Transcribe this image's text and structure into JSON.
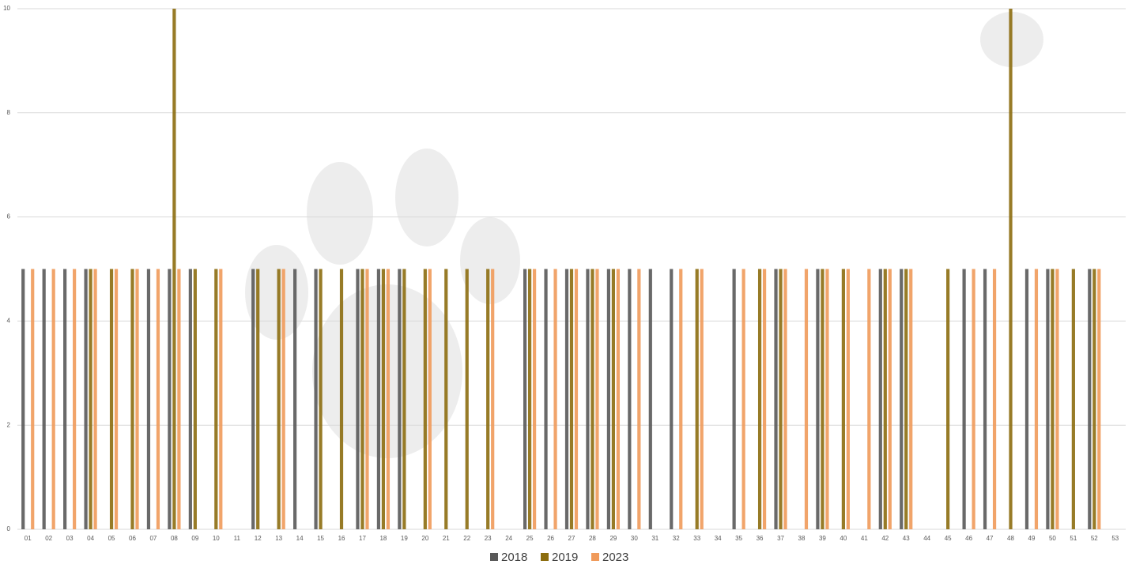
{
  "chart_data": {
    "type": "bar",
    "categories": [
      "01",
      "02",
      "03",
      "04",
      "05",
      "06",
      "07",
      "08",
      "09",
      "10",
      "11",
      "12",
      "13",
      "14",
      "15",
      "16",
      "17",
      "18",
      "19",
      "20",
      "21",
      "22",
      "23",
      "24",
      "25",
      "26",
      "27",
      "28",
      "29",
      "30",
      "31",
      "32",
      "33",
      "34",
      "35",
      "36",
      "37",
      "38",
      "39",
      "40",
      "41",
      "42",
      "43",
      "44",
      "45",
      "46",
      "47",
      "48",
      "49",
      "50",
      "51",
      "52",
      "53"
    ],
    "series": [
      {
        "name": "2018",
        "color": "#595959",
        "values": [
          5,
          5,
          5,
          5,
          0,
          0,
          5,
          5,
          5,
          0,
          0,
          5,
          0,
          5,
          5,
          0,
          5,
          5,
          5,
          0,
          0,
          0,
          0,
          0,
          5,
          5,
          5,
          5,
          5,
          5,
          5,
          5,
          0,
          0,
          5,
          0,
          5,
          0,
          5,
          0,
          0,
          5,
          5,
          0,
          0,
          5,
          5,
          0,
          5,
          5,
          0,
          5,
          0
        ]
      },
      {
        "name": "2019",
        "color": "#8c6d0f",
        "values": [
          0,
          0,
          0,
          5,
          5,
          5,
          0,
          10,
          5,
          5,
          0,
          5,
          5,
          0,
          5,
          5,
          5,
          5,
          5,
          5,
          5,
          5,
          5,
          0,
          5,
          0,
          5,
          5,
          5,
          0,
          0,
          0,
          5,
          0,
          0,
          5,
          5,
          0,
          5,
          5,
          0,
          5,
          5,
          0,
          5,
          0,
          0,
          10,
          0,
          5,
          5,
          5,
          0
        ]
      },
      {
        "name": "2023",
        "color": "#f09a5a",
        "values": [
          5,
          5,
          5,
          5,
          5,
          5,
          5,
          5,
          0,
          5,
          0,
          0,
          5,
          0,
          0,
          0,
          5,
          5,
          0,
          5,
          0,
          0,
          5,
          0,
          5,
          5,
          5,
          5,
          5,
          5,
          0,
          5,
          5,
          0,
          5,
          5,
          5,
          5,
          5,
          5,
          5,
          5,
          5,
          0,
          0,
          5,
          5,
          0,
          5,
          5,
          0,
          5,
          0
        ]
      }
    ],
    "ylim": [
      0,
      10
    ],
    "yticks": [
      0,
      2,
      4,
      6,
      8,
      10
    ],
    "grid": true,
    "legend": "bottom"
  }
}
